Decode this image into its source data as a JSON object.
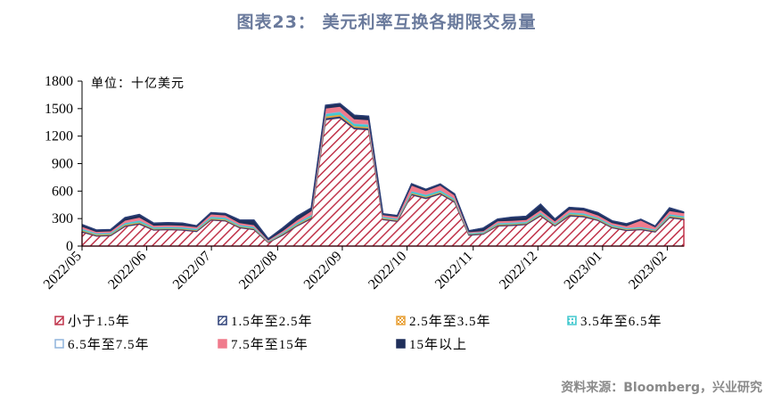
{
  "page": {
    "title": "图表23： 美元利率互换各期限交易量",
    "source": "资料来源：Bloomberg，兴业研究"
  },
  "chart_data": {
    "type": "area",
    "unit_label": "单位：十亿美元",
    "ylim": [
      0,
      1800
    ],
    "yticks": [
      0,
      300,
      600,
      900,
      1200,
      1500,
      1800
    ],
    "xlim": [
      0,
      40
    ],
    "xticks": [
      {
        "label": "2022/05",
        "pos": 0
      },
      {
        "label": "2022/06",
        "pos": 4.3
      },
      {
        "label": "2022/07",
        "pos": 8.6
      },
      {
        "label": "2022/08",
        "pos": 13
      },
      {
        "label": "2022/09",
        "pos": 17.3
      },
      {
        "label": "2022/10",
        "pos": 21.6
      },
      {
        "label": "2022/11",
        "pos": 26
      },
      {
        "label": "2022/12",
        "pos": 30.3
      },
      {
        "label": "2023/01",
        "pos": 34.6
      },
      {
        "label": "2023/02",
        "pos": 38.9
      }
    ],
    "series": [
      {
        "name": "小于1.5年",
        "color": "#c0334a",
        "style": "hatch-diag",
        "values": [
          155,
          110,
          115,
          215,
          240,
          175,
          180,
          175,
          160,
          285,
          275,
          200,
          180,
          40,
          120,
          220,
          300,
          1380,
          1400,
          1280,
          1270,
          290,
          270,
          560,
          520,
          570,
          480,
          120,
          130,
          220,
          225,
          235,
          330,
          220,
          330,
          320,
          280,
          200,
          170,
          180,
          155,
          310,
          290
        ]
      },
      {
        "name": "1.5年至2.5年",
        "color": "#2b3f77",
        "style": "stripe",
        "values": [
          10,
          10,
          10,
          12,
          12,
          10,
          10,
          10,
          10,
          10,
          10,
          10,
          10,
          5,
          10,
          10,
          12,
          20,
          20,
          18,
          18,
          10,
          10,
          12,
          12,
          12,
          12,
          8,
          8,
          10,
          10,
          10,
          12,
          10,
          12,
          12,
          10,
          10,
          10,
          10,
          10,
          12,
          12
        ]
      },
      {
        "name": "2.5年至3.5年",
        "color": "#e8a23a",
        "style": "check",
        "values": [
          10,
          8,
          8,
          10,
          10,
          8,
          8,
          8,
          8,
          10,
          10,
          8,
          8,
          5,
          8,
          10,
          10,
          18,
          18,
          15,
          15,
          8,
          8,
          10,
          10,
          10,
          10,
          6,
          6,
          8,
          8,
          8,
          10,
          8,
          10,
          10,
          8,
          8,
          8,
          8,
          8,
          10,
          10
        ]
      },
      {
        "name": "3.5年至6.5年",
        "color": "#45c9cf",
        "style": "dot",
        "values": [
          15,
          12,
          12,
          15,
          18,
          12,
          12,
          12,
          12,
          15,
          15,
          12,
          12,
          5,
          10,
          15,
          18,
          25,
          25,
          22,
          22,
          12,
          12,
          18,
          18,
          18,
          15,
          10,
          10,
          12,
          12,
          12,
          15,
          12,
          15,
          15,
          12,
          12,
          10,
          10,
          10,
          15,
          15
        ]
      },
      {
        "name": "6.5年至7.5年",
        "color": "#8fb4dc",
        "style": "outline",
        "values": [
          5,
          5,
          5,
          5,
          5,
          5,
          5,
          5,
          5,
          5,
          5,
          5,
          5,
          3,
          5,
          5,
          5,
          8,
          8,
          8,
          8,
          5,
          5,
          5,
          5,
          5,
          5,
          3,
          3,
          5,
          5,
          5,
          5,
          5,
          5,
          5,
          5,
          5,
          5,
          5,
          5,
          5,
          5
        ]
      },
      {
        "name": "7.5年至15年",
        "color": "#f07b8c",
        "style": "solid",
        "values": [
          20,
          15,
          15,
          25,
          30,
          18,
          18,
          18,
          15,
          25,
          25,
          20,
          18,
          10,
          15,
          25,
          40,
          55,
          55,
          45,
          45,
          18,
          18,
          60,
          40,
          50,
          35,
          10,
          10,
          20,
          20,
          20,
          25,
          20,
          30,
          30,
          25,
          20,
          20,
          70,
          20,
          35,
          30
        ]
      },
      {
        "name": "15年以上",
        "color": "#1f2f5a",
        "style": "solid",
        "values": [
          20,
          15,
          15,
          28,
          30,
          22,
          22,
          22,
          12,
          15,
          15,
          30,
          50,
          12,
          30,
          40,
          30,
          30,
          30,
          40,
          40,
          10,
          10,
          15,
          15,
          12,
          12,
          10,
          30,
          20,
          35,
          35,
          60,
          20,
          20,
          20,
          25,
          20,
          20,
          10,
          10,
          30,
          10
        ]
      }
    ]
  }
}
